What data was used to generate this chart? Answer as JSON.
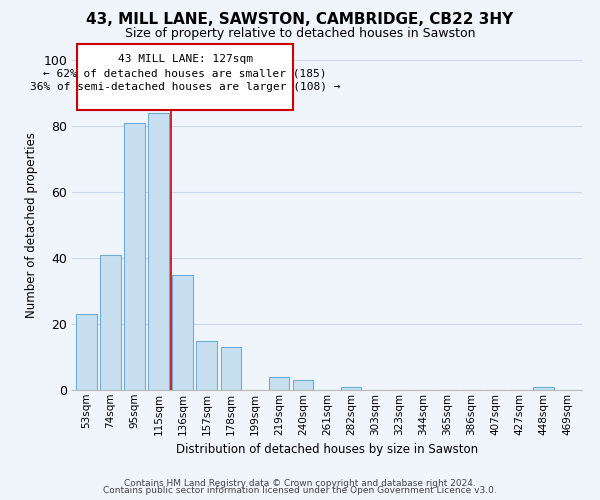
{
  "title": "43, MILL LANE, SAWSTON, CAMBRIDGE, CB22 3HY",
  "subtitle": "Size of property relative to detached houses in Sawston",
  "xlabel": "Distribution of detached houses by size in Sawston",
  "ylabel": "Number of detached properties",
  "bar_labels": [
    "53sqm",
    "74sqm",
    "95sqm",
    "115sqm",
    "136sqm",
    "157sqm",
    "178sqm",
    "199sqm",
    "219sqm",
    "240sqm",
    "261sqm",
    "282sqm",
    "303sqm",
    "323sqm",
    "344sqm",
    "365sqm",
    "386sqm",
    "407sqm",
    "427sqm",
    "448sqm",
    "469sqm"
  ],
  "bar_values": [
    23,
    41,
    81,
    84,
    35,
    15,
    13,
    0,
    4,
    3,
    0,
    1,
    0,
    0,
    0,
    0,
    0,
    0,
    0,
    1,
    0
  ],
  "bar_color": "#c8dff0",
  "bar_edge_color": "#6aafd6",
  "annotation_line1": "43 MILL LANE: 127sqm",
  "annotation_line2": "← 62% of detached houses are smaller (185)",
  "annotation_line3": "36% of semi-detached houses are larger (108) →",
  "annotation_box_color": "white",
  "annotation_box_edge": "#cc0000",
  "property_bar_index": 3.5,
  "ylim": [
    0,
    100
  ],
  "yticks": [
    0,
    20,
    40,
    60,
    80,
    100
  ],
  "bg_color": "#f0f4fb",
  "grid_color": "#ccd8ee",
  "footer1": "Contains HM Land Registry data © Crown copyright and database right 2024.",
  "footer2": "Contains public sector information licensed under the Open Government Licence v3.0."
}
